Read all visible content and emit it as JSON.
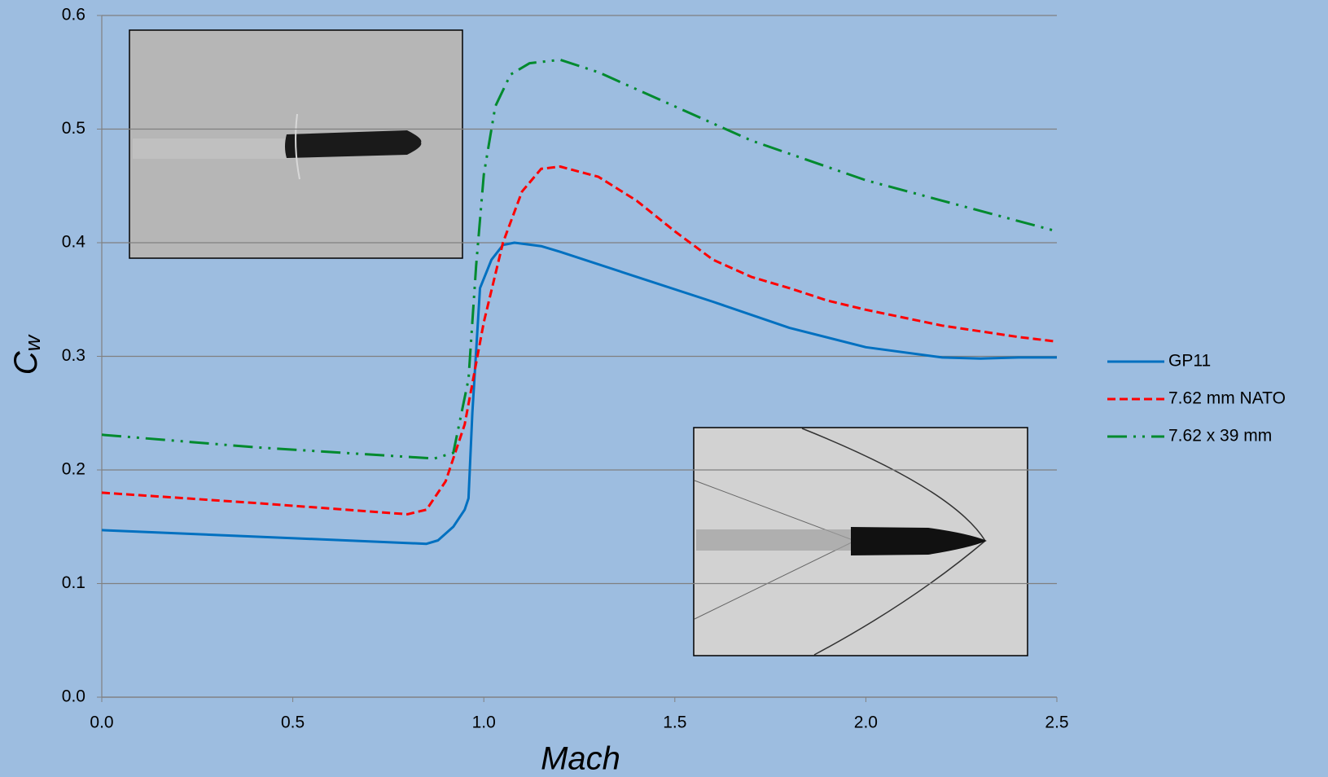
{
  "chart_data": {
    "type": "line",
    "xlabel": "Mach",
    "ylabel": {
      "main": "C",
      "sub": "w"
    },
    "xlim": [
      0,
      2.5
    ],
    "ylim": [
      0,
      0.6
    ],
    "xticks": [
      {
        "value": 0,
        "label": "0.0"
      },
      0.5,
      {
        "value": 1,
        "label": "1.0"
      },
      1.5,
      {
        "value": 2,
        "label": "2.0"
      },
      2.5
    ],
    "yticks": [
      {
        "value": 0,
        "label": "0.0"
      },
      0.1,
      0.2,
      0.3,
      0.4,
      0.5,
      0.6
    ],
    "grid": true,
    "legend": "right",
    "series": [
      {
        "name": "GP11",
        "color": "#0070c0",
        "dash": "solid",
        "x": [
          0,
          0.85,
          0.88,
          0.92,
          0.95,
          0.96,
          0.97,
          0.99,
          1.02,
          1.05,
          1.08,
          1.15,
          1.2,
          1.4,
          1.6,
          1.8,
          2.0,
          2.2,
          2.3,
          2.4,
          2.5
        ],
        "values": [
          0.147,
          0.135,
          0.138,
          0.15,
          0.165,
          0.175,
          0.25,
          0.36,
          0.385,
          0.398,
          0.4,
          0.397,
          0.392,
          0.37,
          0.348,
          0.325,
          0.308,
          0.299,
          0.298,
          0.299,
          0.299
        ]
      },
      {
        "name": "7.62 mm NATO",
        "color": "#ff0000",
        "dash": "dashed",
        "x": [
          0,
          0.4,
          0.8,
          0.85,
          0.9,
          0.95,
          1.0,
          1.05,
          1.1,
          1.15,
          1.2,
          1.3,
          1.4,
          1.5,
          1.6,
          1.7,
          1.8,
          1.9,
          2.0,
          2.2,
          2.4,
          2.5
        ],
        "values": [
          0.18,
          0.171,
          0.161,
          0.165,
          0.19,
          0.24,
          0.33,
          0.4,
          0.445,
          0.465,
          0.467,
          0.458,
          0.437,
          0.41,
          0.385,
          0.37,
          0.36,
          0.349,
          0.341,
          0.327,
          0.317,
          0.313
        ]
      },
      {
        "name": "7.62 x 39 mm",
        "color": "#008a2e",
        "dash": "dash-dot-dot",
        "x": [
          0,
          0.4,
          0.87,
          0.92,
          0.96,
          0.98,
          1.0,
          1.03,
          1.07,
          1.12,
          1.2,
          1.3,
          1.5,
          1.7,
          2.0,
          2.2,
          2.5
        ],
        "values": [
          0.231,
          0.22,
          0.21,
          0.215,
          0.28,
          0.38,
          0.46,
          0.52,
          0.548,
          0.558,
          0.561,
          0.55,
          0.52,
          0.49,
          0.455,
          0.437,
          0.41
        ]
      }
    ]
  }
}
